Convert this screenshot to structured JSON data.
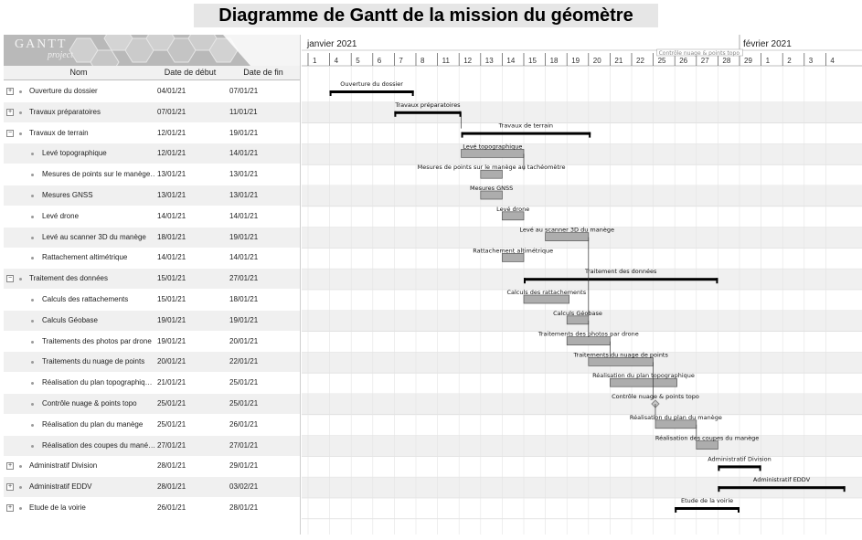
{
  "title": "Diagramme de Gantt de la mission du géomètre",
  "logo": {
    "text": "GANTT",
    "sub": "project"
  },
  "columns": {
    "name": "Nom",
    "start": "Date de début",
    "end": "Date de fin"
  },
  "timeline": {
    "months": [
      {
        "label": "janvier 2021",
        "day_index": 0
      },
      {
        "label": "février 2021",
        "day_index": 20
      }
    ],
    "days": [
      "1",
      "4",
      "5",
      "6",
      "7",
      "8",
      "11",
      "12",
      "13",
      "14",
      "15",
      "18",
      "19",
      "20",
      "21",
      "22",
      "25",
      "26",
      "27",
      "28",
      "29",
      "1",
      "2",
      "3",
      "4"
    ],
    "top_label": "Contrôle nuage & points topo"
  },
  "tasks": [
    {
      "name": "Ouverture du dossier",
      "start": "04/01/21",
      "end": "07/01/21",
      "level": 0,
      "toggle": "+",
      "summary": true,
      "s": 1,
      "e": 4.9,
      "label": "Ouverture du dossier"
    },
    {
      "name": "Travaux préparatoires",
      "start": "07/01/21",
      "end": "11/01/21",
      "level": 0,
      "toggle": "+",
      "summary": true,
      "s": 4,
      "e": 7.1,
      "label": "Travaux préparatoires"
    },
    {
      "name": "Travaux de terrain",
      "start": "12/01/21",
      "end": "19/01/21",
      "level": 0,
      "toggle": "−",
      "summary": true,
      "s": 7.1,
      "e": 13.1,
      "label": "Travaux de terrain"
    },
    {
      "name": "Levé topographique",
      "start": "12/01/21",
      "end": "14/01/21",
      "level": 1,
      "summary": false,
      "s": 7.1,
      "e": 10,
      "label": "Levé topographique"
    },
    {
      "name": "Mesures de points sur le manège…",
      "start": "13/01/21",
      "end": "13/01/21",
      "level": 1,
      "summary": false,
      "s": 8,
      "e": 9,
      "label": "Mesures de points sur le manège au tachéomètre"
    },
    {
      "name": "Mesures GNSS",
      "start": "13/01/21",
      "end": "13/01/21",
      "level": 1,
      "summary": false,
      "s": 8,
      "e": 9,
      "label": "Mesures GNSS"
    },
    {
      "name": "Levé drone",
      "start": "14/01/21",
      "end": "14/01/21",
      "level": 1,
      "summary": false,
      "s": 9,
      "e": 10,
      "label": "Levé drone"
    },
    {
      "name": "Levé au scanner 3D du manège",
      "start": "18/01/21",
      "end": "19/01/21",
      "level": 1,
      "summary": false,
      "s": 11,
      "e": 13,
      "label": "Levé au scanner 3D du manège"
    },
    {
      "name": "Rattachement altimétrique",
      "start": "14/01/21",
      "end": "14/01/21",
      "level": 1,
      "summary": false,
      "s": 9,
      "e": 10,
      "label": "Rattachement altimétrique"
    },
    {
      "name": "Traitement des données",
      "start": "15/01/21",
      "end": "27/01/21",
      "level": 0,
      "toggle": "−",
      "summary": true,
      "s": 10,
      "e": 19,
      "label": "Traitement des données"
    },
    {
      "name": "Calculs des rattachements",
      "start": "15/01/21",
      "end": "18/01/21",
      "level": 1,
      "summary": false,
      "s": 10,
      "e": 12.1,
      "label": "Calculs des rattachements"
    },
    {
      "name": "Calculs Géobase",
      "start": "19/01/21",
      "end": "19/01/21",
      "level": 1,
      "summary": false,
      "s": 12,
      "e": 13,
      "label": "Calculs Géobase"
    },
    {
      "name": "Traitements des photos par drone",
      "start": "19/01/21",
      "end": "20/01/21",
      "level": 1,
      "summary": false,
      "s": 12,
      "e": 14,
      "label": "Traitements des photos par drone"
    },
    {
      "name": "Traitements du nuage de points",
      "start": "20/01/21",
      "end": "22/01/21",
      "level": 1,
      "summary": false,
      "s": 13,
      "e": 16,
      "label": "Traitements du nuage de points"
    },
    {
      "name": "Réalisation du plan topographiq…",
      "start": "21/01/21",
      "end": "25/01/21",
      "level": 1,
      "summary": false,
      "s": 14,
      "e": 17.1,
      "label": "Réalisation du plan topographique"
    },
    {
      "name": "Contrôle nuage & points topo",
      "start": "25/01/21",
      "end": "25/01/21",
      "level": 1,
      "summary": false,
      "milestone": true,
      "s": 16.1,
      "e": 16.1,
      "label": "Contrôle nuage & points topo"
    },
    {
      "name": "Réalisation du plan du manège",
      "start": "25/01/21",
      "end": "26/01/21",
      "level": 1,
      "summary": false,
      "s": 16.1,
      "e": 18,
      "label": "Réalisation du plan du manège"
    },
    {
      "name": "Réalisation des coupes du mané…",
      "start": "27/01/21",
      "end": "27/01/21",
      "level": 1,
      "summary": false,
      "s": 18,
      "e": 19,
      "label": "Réalisation des coupes du manège"
    },
    {
      "name": "Administratif Division",
      "start": "28/01/21",
      "end": "29/01/21",
      "level": 0,
      "toggle": "+",
      "summary": true,
      "s": 19,
      "e": 21,
      "label": "Administratif Division"
    },
    {
      "name": "Administratif EDDV",
      "start": "28/01/21",
      "end": "03/02/21",
      "level": 0,
      "toggle": "+",
      "summary": true,
      "s": 19,
      "e": 24.9,
      "label": "Administratif EDDV"
    },
    {
      "name": "Etude de la voirie",
      "start": "26/01/21",
      "end": "28/01/21",
      "level": 0,
      "toggle": "+",
      "summary": true,
      "s": 17,
      "e": 20,
      "label": "Etude de la voirie"
    }
  ]
}
